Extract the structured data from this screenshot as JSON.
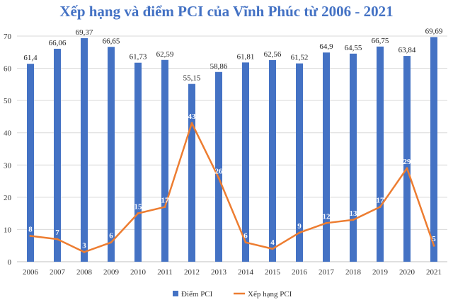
{
  "chart_data": {
    "type": "bar",
    "title": "Xếp hạng và điểm PCI của Vĩnh Phúc từ 2006 - 2021",
    "categories": [
      "2006",
      "2007",
      "2008",
      "2009",
      "2010",
      "2011",
      "2012",
      "2013",
      "2014",
      "2015",
      "2016",
      "2017",
      "2018",
      "2019",
      "2020",
      "2021"
    ],
    "series": [
      {
        "name": "Điểm PCI",
        "type": "bar",
        "color": "#4472c4",
        "values": [
          61.4,
          66.06,
          69.37,
          66.65,
          61.73,
          62.59,
          55.15,
          58.86,
          61.81,
          62.56,
          61.52,
          64.9,
          64.55,
          66.75,
          63.84,
          69.69
        ],
        "labels": [
          "61,4",
          "66,06",
          "69,37",
          "66,65",
          "61,73",
          "62,59",
          "55,15",
          "58,86",
          "61,81",
          "62,56",
          "61,52",
          "64,9",
          "64,55",
          "66,75",
          "63,84",
          "69,69"
        ]
      },
      {
        "name": "Xếp hạng PCI",
        "type": "line",
        "color": "#ed7d31",
        "values": [
          8,
          7,
          3,
          6,
          15,
          17,
          43,
          26,
          6,
          4,
          9,
          12,
          13,
          17,
          29,
          5
        ],
        "labels": [
          "8",
          "7",
          "3",
          "6",
          "15",
          "17",
          "43",
          "26",
          "6",
          "4",
          "9",
          "12",
          "13",
          "17",
          "29",
          "5"
        ]
      }
    ],
    "ylim": [
      0,
      70
    ],
    "yticks": [
      "0",
      "10",
      "20",
      "30",
      "40",
      "50",
      "60",
      "70"
    ],
    "grid": true,
    "legend_position": "bottom"
  }
}
